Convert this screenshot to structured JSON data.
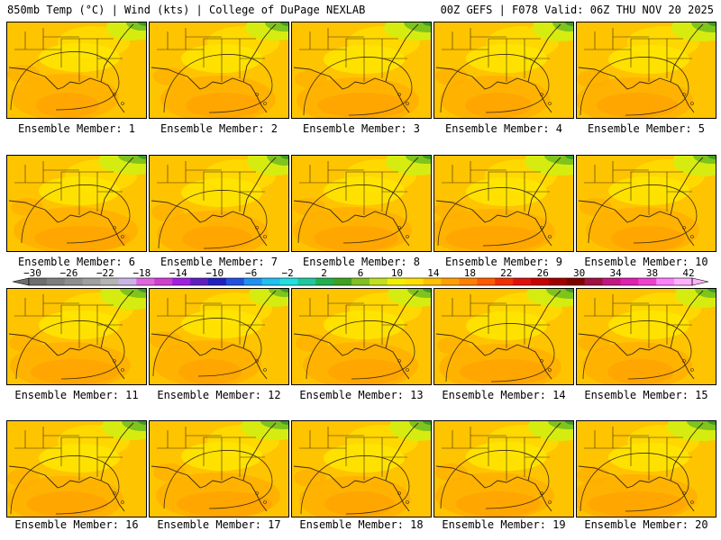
{
  "header": {
    "left": "850mb Temp (°C) | Wind (kts) | College of DuPage NEXLAB",
    "right": "00Z GEFS | F078 Valid: 06Z THU NOV 20 2025"
  },
  "panels": [
    {
      "label": "Ensemble Member: 1"
    },
    {
      "label": "Ensemble Member: 2"
    },
    {
      "label": "Ensemble Member: 3"
    },
    {
      "label": "Ensemble Member: 4"
    },
    {
      "label": "Ensemble Member: 5"
    },
    {
      "label": "Ensemble Member: 6"
    },
    {
      "label": "Ensemble Member: 7"
    },
    {
      "label": "Ensemble Member: 8"
    },
    {
      "label": "Ensemble Member: 9"
    },
    {
      "label": "Ensemble Member: 10"
    },
    {
      "label": "Ensemble Member: 11"
    },
    {
      "label": "Ensemble Member: 12"
    },
    {
      "label": "Ensemble Member: 13"
    },
    {
      "label": "Ensemble Member: 14"
    },
    {
      "label": "Ensemble Member: 15"
    },
    {
      "label": "Ensemble Member: 16"
    },
    {
      "label": "Ensemble Member: 17"
    },
    {
      "label": "Ensemble Member: 18"
    },
    {
      "label": "Ensemble Member: 19"
    },
    {
      "label": "Ensemble Member: 20"
    }
  ],
  "colorbar": {
    "ticks": [
      "−30",
      "−26",
      "−22",
      "−18",
      "−14",
      "−10",
      "−6",
      "−2",
      "2",
      "6",
      "10",
      "14",
      "18",
      "22",
      "26",
      "30",
      "34",
      "38",
      "42"
    ],
    "colors": [
      "#6e6e6e",
      "#7e7e7e",
      "#8e8e8e",
      "#a0a0a0",
      "#b4b4b4",
      "#c8b4e6",
      "#e066e0",
      "#d040d0",
      "#a020e0",
      "#6020c0",
      "#2020c0",
      "#2050e0",
      "#2090f0",
      "#20c0f0",
      "#20e0e0",
      "#20c8a0",
      "#20b050",
      "#40a020",
      "#80c020",
      "#c0e020",
      "#f0f000",
      "#ffe000",
      "#ffc000",
      "#ffa000",
      "#ff8000",
      "#ff5a00",
      "#f03000",
      "#e01010",
      "#c80000",
      "#a00000",
      "#800000",
      "#a01040",
      "#c01880",
      "#e020b0",
      "#f040d0",
      "#ff80ff",
      "#ffb0ff"
    ]
  }
}
